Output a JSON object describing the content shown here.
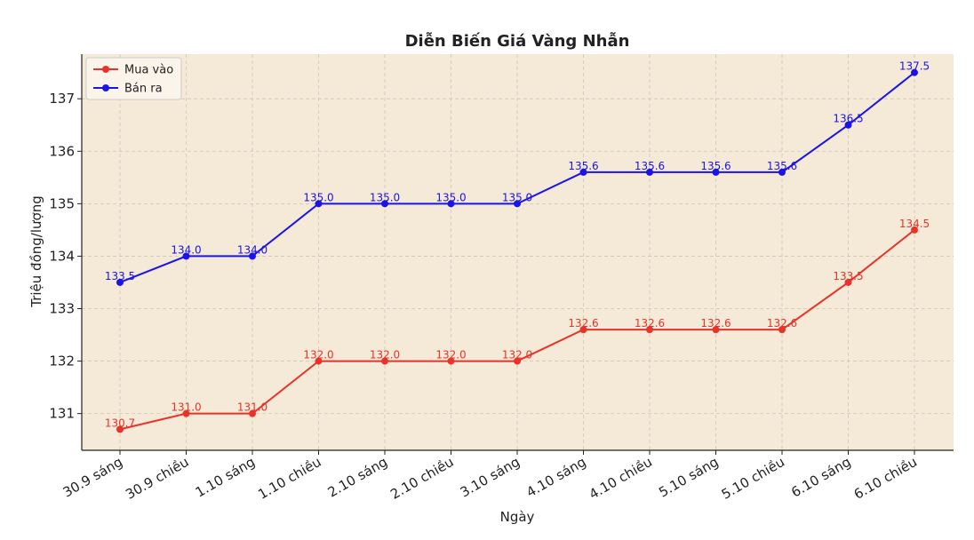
{
  "chart_data": {
    "type": "line",
    "title": "Diễn Biến Giá Vàng Nhẫn",
    "xlabel": "Ngày",
    "ylabel": "Triệu đồng/lượng",
    "categories": [
      "30.9 sáng",
      "30.9 chiều",
      "1.10 sáng",
      "1.10 chiều",
      "2.10 sáng",
      "2.10 chiều",
      "3.10 sáng",
      "4.10 sáng",
      "4.10 chiều",
      "5.10 sáng",
      "5.10 chiều",
      "6.10 sáng",
      "6.10 chiều"
    ],
    "series": [
      {
        "name": "Mua vào",
        "color": "#e8332a",
        "values": [
          130.7,
          131.0,
          131.0,
          132.0,
          132.0,
          132.0,
          132.0,
          132.6,
          132.6,
          132.6,
          132.6,
          133.5,
          134.5
        ],
        "labels": [
          "130.7",
          "131.0",
          "131.0",
          "132.0",
          "132.0",
          "132.0",
          "132.0",
          "132.6",
          "132.6",
          "132.6",
          "132.6",
          "133.5",
          "134.5"
        ]
      },
      {
        "name": "Bán ra",
        "color": "#1a14e6",
        "values": [
          133.5,
          134.0,
          134.0,
          135.0,
          135.0,
          135.0,
          135.0,
          135.6,
          135.6,
          135.6,
          135.6,
          136.5,
          137.5
        ],
        "labels": [
          "133.5",
          "134.0",
          "134.0",
          "135.0",
          "135.0",
          "135.0",
          "135.0",
          "135.6",
          "135.6",
          "135.6",
          "135.6",
          "136.5",
          "137.5"
        ]
      }
    ],
    "yticks": [
      "131",
      "132",
      "133",
      "134",
      "135",
      "136",
      "137"
    ],
    "ylim": [
      130.3,
      137.85
    ],
    "grid": true,
    "legend_position": "top-left",
    "plot_background": "#f5e9d8"
  }
}
